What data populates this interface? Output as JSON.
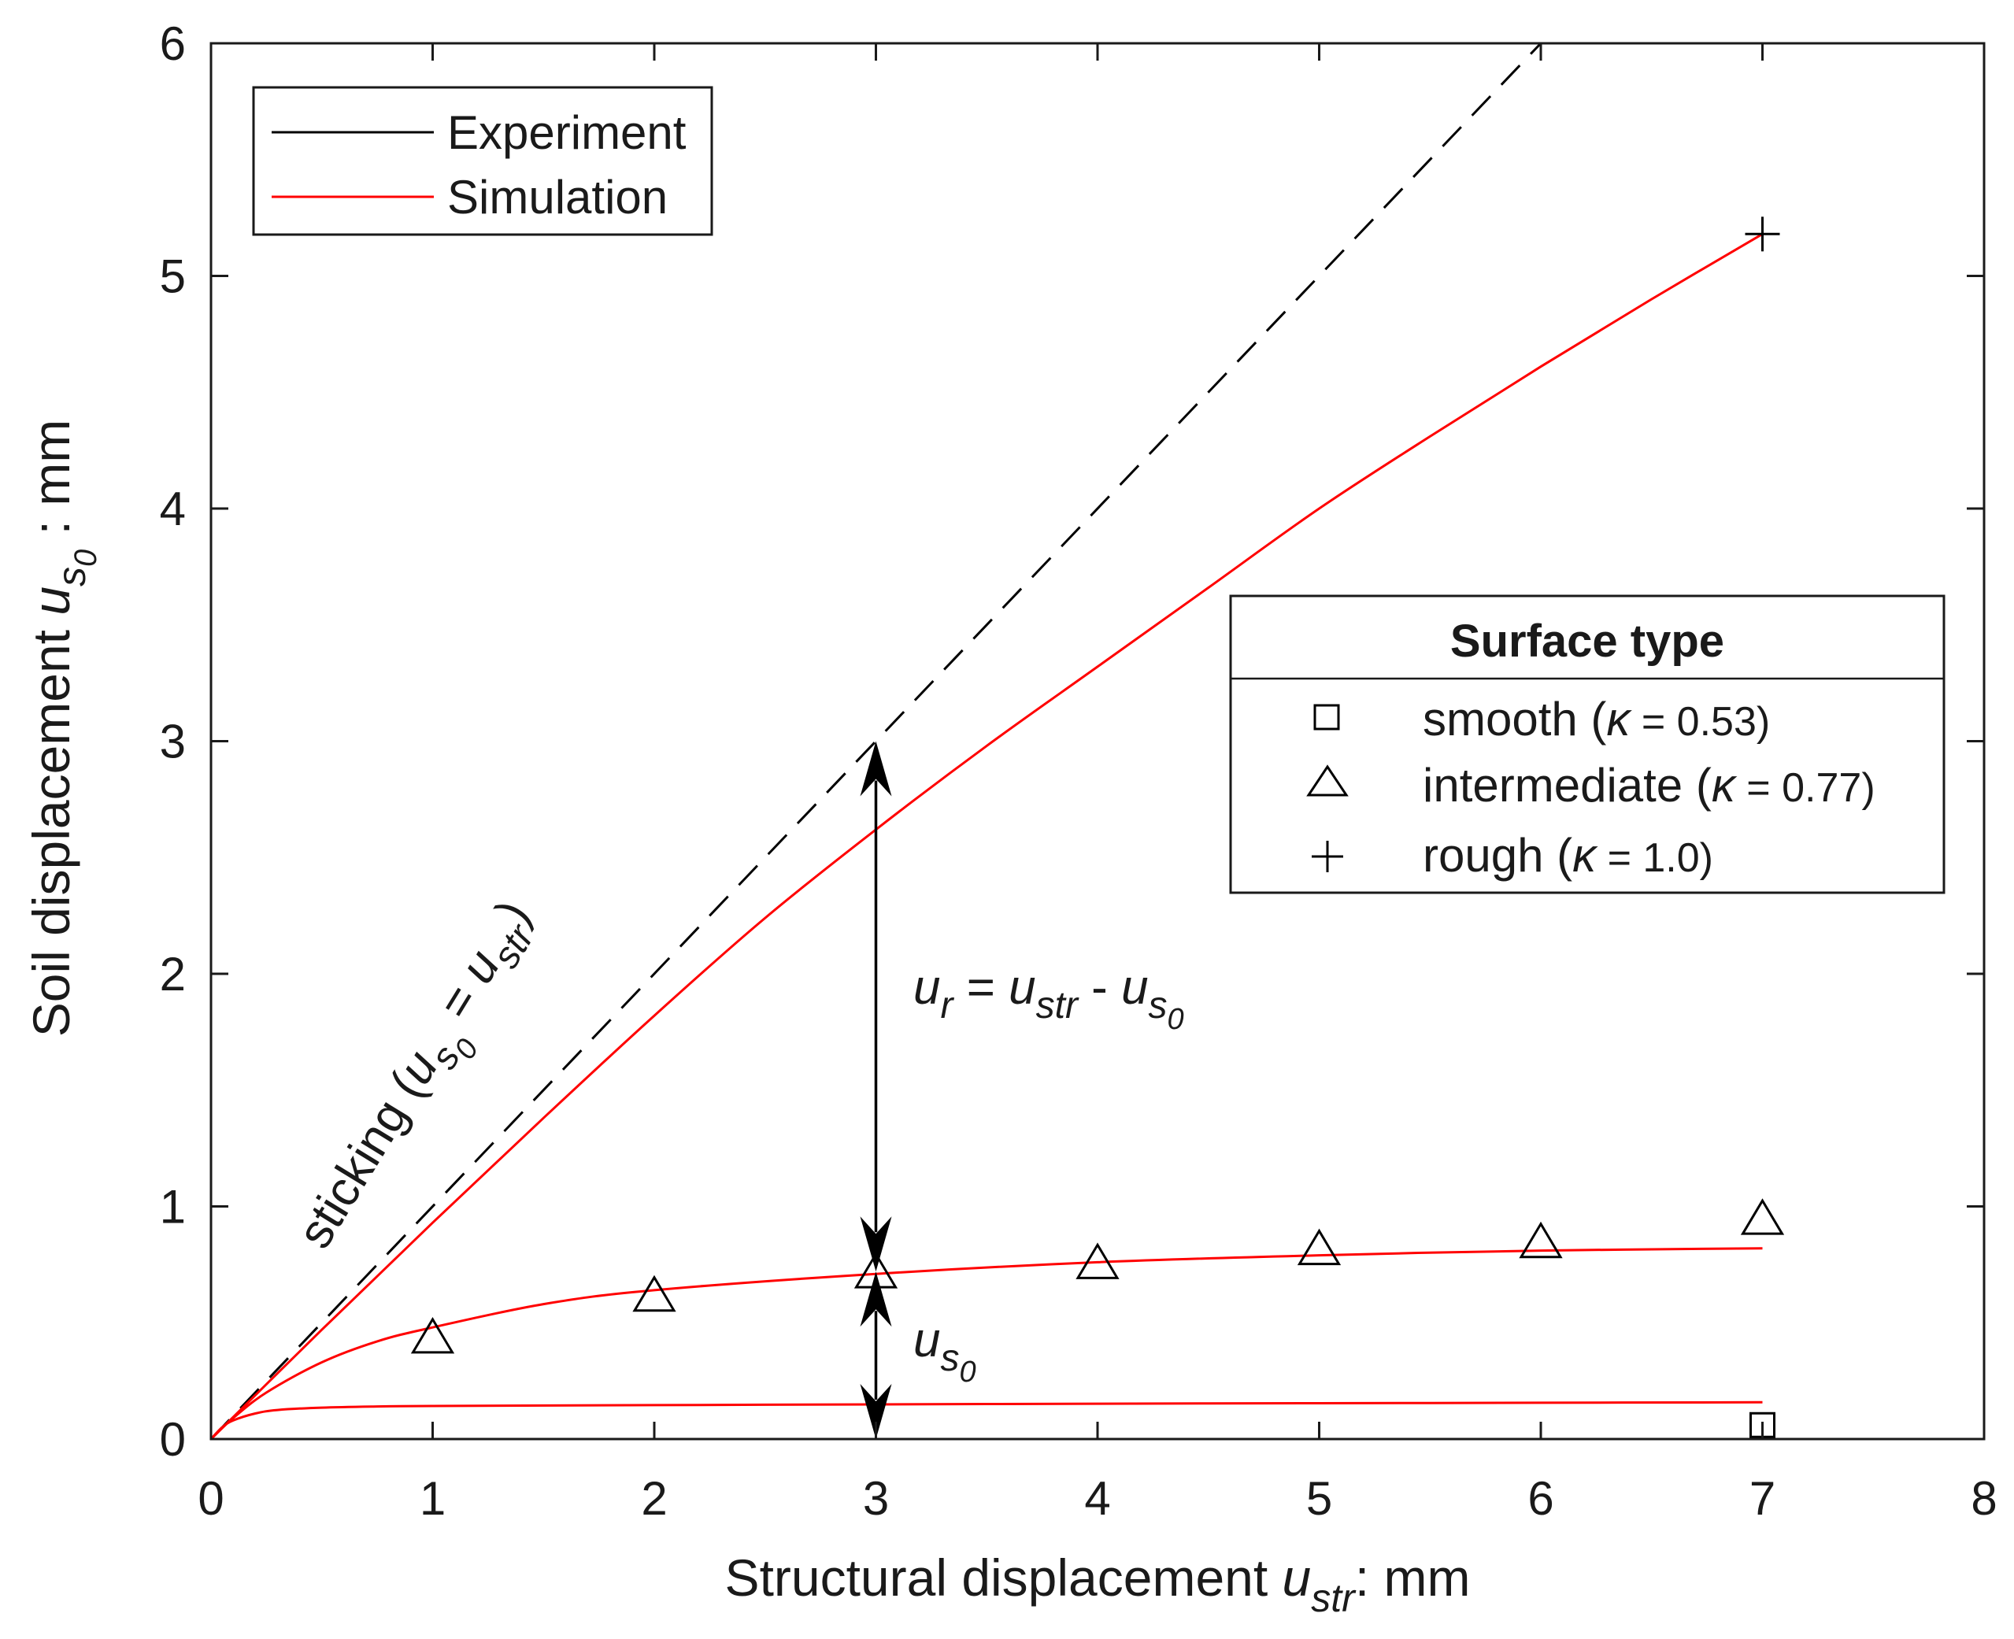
{
  "chart_data": {
    "type": "line",
    "xlabel": {
      "main": "Structural displacement ",
      "var": "u",
      "sub": "str",
      "tail": ": mm"
    },
    "ylabel": {
      "main": "Soil displacement ",
      "var": "u",
      "sub": "s",
      "subsub": "0",
      "tail": " : mm"
    },
    "xlim": [
      0,
      8
    ],
    "ylim": [
      0,
      6
    ],
    "xticks": [
      0,
      1,
      2,
      3,
      4,
      5,
      6,
      7,
      8
    ],
    "yticks": [
      0,
      1,
      2,
      3,
      4,
      5,
      6
    ],
    "grid": false,
    "sticking_line": {
      "x": [
        0,
        6
      ],
      "y": [
        0,
        6
      ],
      "style": "dashed",
      "color": "#000000"
    },
    "simulation_series": [
      {
        "name": "rough",
        "color": "#ff0000",
        "x": [
          0,
          0.5,
          1,
          1.5,
          2,
          2.5,
          3,
          3.5,
          4,
          4.5,
          5,
          5.5,
          6,
          6.5,
          7
        ],
        "y": [
          0,
          0.47,
          0.93,
          1.38,
          1.82,
          2.24,
          2.62,
          2.98,
          3.32,
          3.66,
          4.0,
          4.31,
          4.61,
          4.9,
          5.18
        ]
      },
      {
        "name": "intermediate",
        "color": "#ff0000",
        "x": [
          0,
          0.1,
          0.25,
          0.5,
          0.75,
          1,
          1.5,
          2,
          3,
          4,
          5,
          6,
          7
        ],
        "y": [
          0,
          0.09,
          0.2,
          0.33,
          0.42,
          0.48,
          0.58,
          0.64,
          0.71,
          0.76,
          0.79,
          0.81,
          0.82
        ]
      },
      {
        "name": "smooth",
        "color": "#ff0000",
        "x": [
          0,
          0.05,
          0.1,
          0.2,
          0.3,
          0.5,
          0.75,
          1,
          2,
          3,
          4,
          5,
          6,
          7
        ],
        "y": [
          0,
          0.05,
          0.08,
          0.11,
          0.125,
          0.135,
          0.14,
          0.142,
          0.146,
          0.149,
          0.152,
          0.154,
          0.156,
          0.158
        ]
      }
    ],
    "experiment_points": [
      {
        "surface": "smooth",
        "marker": "square",
        "x": [
          7
        ],
        "y": [
          0.06
        ]
      },
      {
        "surface": "intermediate",
        "marker": "triangle",
        "x": [
          1,
          2,
          3,
          4,
          5,
          6,
          7
        ],
        "y": [
          0.42,
          0.6,
          0.7,
          0.74,
          0.8,
          0.83,
          0.93
        ]
      },
      {
        "surface": "rough",
        "marker": "plus",
        "x": [
          7
        ],
        "y": [
          5.18
        ]
      }
    ],
    "arrows": [
      {
        "x": 3,
        "y_from": 0.72,
        "y_to": 3.0,
        "label": "upper"
      },
      {
        "x": 3,
        "y_from": 0.0,
        "y_to": 0.72,
        "label": "lower"
      }
    ]
  },
  "legend_lines": {
    "items": [
      {
        "label": "Experiment",
        "color": "#000000"
      },
      {
        "label": "Simulation",
        "color": "#ff0000"
      }
    ]
  },
  "legend_surface": {
    "title": "Surface type",
    "items": [
      {
        "marker": "square",
        "name": "smooth",
        "kappa_symbol": "κ",
        "kappa_value": " = 0.53)"
      },
      {
        "marker": "triangle",
        "name": "intermediate",
        "kappa_symbol": "κ",
        "kappa_value": " = 0.77)"
      },
      {
        "marker": "plus",
        "name": "rough",
        "kappa_symbol": "κ",
        "kappa_value": " = 1.0)"
      }
    ]
  },
  "annotations": {
    "sticking": {
      "text": "sticking (",
      "var1": "u",
      "sub1": "s",
      "subsub1": "0",
      "eq": " = ",
      "var2": "u",
      "sub2": "str",
      "close": ")"
    },
    "relative": {
      "var1": "u",
      "sub1": "r",
      "eq": " = ",
      "var2": "u",
      "sub2": "str",
      "minus": " - ",
      "var3": "u",
      "sub3": "s",
      "subsub3": "0"
    },
    "soil": {
      "var": "u",
      "sub": "s",
      "subsub": "0"
    }
  }
}
